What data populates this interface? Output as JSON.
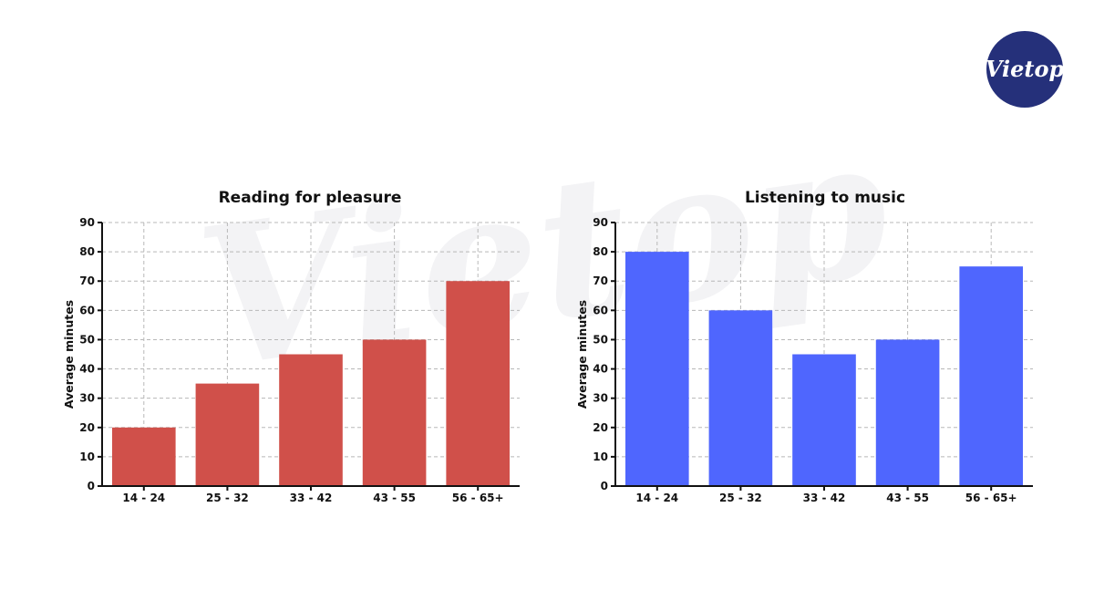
{
  "brand": {
    "logo_text": "Vietop",
    "logo_color": "#25307a",
    "watermark_text": "Vietop",
    "watermark_color": "#f3f3f5"
  },
  "chart_data": [
    {
      "type": "bar",
      "title": "Reading for pleasure",
      "xlabel": "",
      "ylabel": "Average minutes",
      "categories": [
        "14 - 24",
        "25 - 32",
        "33 - 42",
        "43 - 55",
        "56 - 65+"
      ],
      "values": [
        20,
        35,
        45,
        50,
        70
      ],
      "ylim": [
        0,
        90
      ],
      "yticks": [
        0,
        10,
        20,
        30,
        40,
        50,
        60,
        70,
        80,
        90
      ],
      "grid": true,
      "color": "#d0504a"
    },
    {
      "type": "bar",
      "title": "Listening to music",
      "xlabel": "",
      "ylabel": "Average minutes",
      "categories": [
        "14 - 24",
        "25 - 32",
        "33 - 42",
        "43 - 55",
        "56 - 65+"
      ],
      "values": [
        80,
        60,
        45,
        50,
        75
      ],
      "ylim": [
        0,
        90
      ],
      "yticks": [
        0,
        10,
        20,
        30,
        40,
        50,
        60,
        70,
        80,
        90
      ],
      "grid": true,
      "color": "#4f66fe"
    }
  ]
}
